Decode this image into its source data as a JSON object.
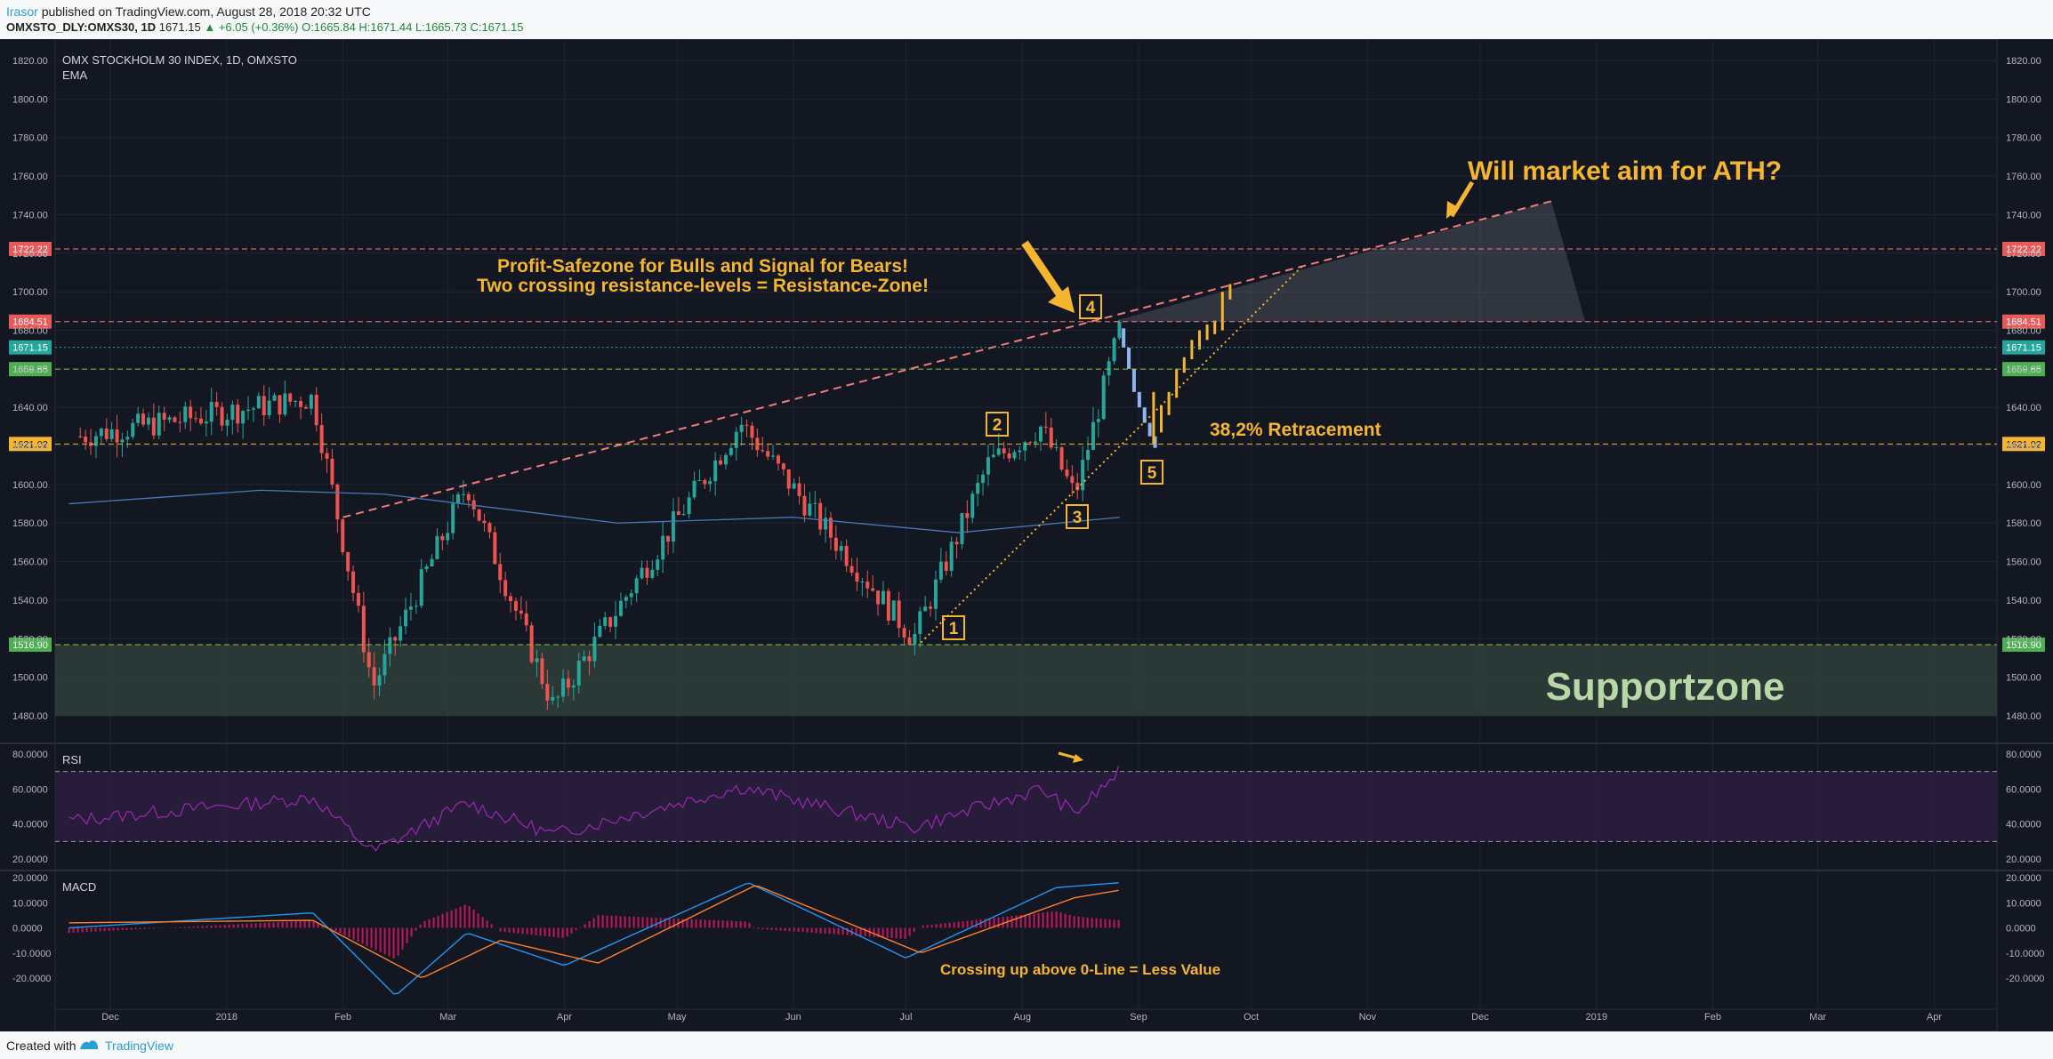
{
  "header": {
    "author": "Irasor",
    "published": "published on TradingView.com, August 28, 2018 20:32 UTC",
    "symbol": "OMXSTO_DLY:OMXS30, 1D",
    "last": "1671.15",
    "change": "▲ +6.05 (+0.36%)",
    "ohlc": "O:1665.84 H:1671.44 L:1665.73 C:1671.15"
  },
  "footer": {
    "created": "Created with",
    "brand": "TradingView"
  },
  "colors": {
    "background": "#131722",
    "up": "#26a69a",
    "down": "#ef5350",
    "annotation": "#f5b52e",
    "resistance": "#f07b7b",
    "support_zone": "#2e3d38",
    "rsi_line": "#9c27b0",
    "macd_line": "#2196f3",
    "signal_line": "#ff7f2a"
  },
  "chart_data": [
    {
      "type": "candlestick",
      "title": "OMX STOCKHOLM 30 INDEX, 1D, OMXSTO",
      "indicator_label": "EMA",
      "x_labels": [
        "Dec",
        "2018",
        "Feb",
        "Mar",
        "Apr",
        "May",
        "Jun",
        "Jul",
        "Aug",
        "Sep",
        "Oct",
        "Nov",
        "Dec",
        "2019",
        "Feb",
        "Mar",
        "Apr"
      ],
      "y_ticks": [
        "1820.00",
        "1800.00",
        "1780.00",
        "1760.00",
        "1740.00",
        "1720.00",
        "1700.00",
        "1680.00",
        "1660.00",
        "1640.00",
        "1620.00",
        "1600.00",
        "1580.00",
        "1560.00",
        "1540.00",
        "1520.00",
        "1500.00",
        "1480.00"
      ],
      "ylim": [
        1474,
        1830
      ],
      "price_levels": [
        {
          "label": "1722.22",
          "value": 1722.22,
          "style": "resistance"
        },
        {
          "label": "1684.51",
          "value": 1684.51,
          "style": "resistance"
        },
        {
          "label": "1671.15",
          "value": 1671.15,
          "style": "last"
        },
        {
          "label": "1659.85",
          "value": 1659.85,
          "style": "level"
        },
        {
          "label": "1621.02",
          "value": 1621.02,
          "style": "fib"
        },
        {
          "label": "1516.90",
          "value": 1516.9,
          "style": "level"
        }
      ],
      "support_zone": {
        "label": "Supportzone",
        "from": 1480,
        "to": 1517
      },
      "key_points": [
        {
          "date": "2017-11-23",
          "price": 1625
        },
        {
          "date": "2018-01-24",
          "price": 1645
        },
        {
          "date": "2018-02-09",
          "price": 1495
        },
        {
          "date": "2018-03-06",
          "price": 1600
        },
        {
          "date": "2018-03-29",
          "price": 1485
        },
        {
          "date": "2018-05-18",
          "price": 1632
        },
        {
          "date": "2018-07-03",
          "price": 1520
        },
        {
          "date": "2018-07-23",
          "price": 1611
        },
        {
          "date": "2018-08-06",
          "price": 1630
        },
        {
          "date": "2018-08-15",
          "price": 1594
        },
        {
          "date": "2018-08-27",
          "price": 1681
        }
      ],
      "ema": [
        {
          "date": "2017-11-20",
          "value": 1590
        },
        {
          "date": "2018-01-10",
          "value": 1597
        },
        {
          "date": "2018-02-12",
          "value": 1595
        },
        {
          "date": "2018-04-15",
          "value": 1580
        },
        {
          "date": "2018-06-01",
          "value": 1583
        },
        {
          "date": "2018-07-15",
          "value": 1575
        },
        {
          "date": "2018-08-27",
          "value": 1583
        }
      ],
      "annotations": [
        {
          "text": "Will market aim for ATH?"
        },
        {
          "text": "Profit-Safezone for Bulls and Signal for Bears!"
        },
        {
          "text": "Two crossing resistance-levels = Resistance-Zone!"
        },
        {
          "text": "38,2% Retracement"
        },
        {
          "text": "1"
        },
        {
          "text": "2"
        },
        {
          "text": "3"
        },
        {
          "text": "4"
        },
        {
          "text": "5"
        }
      ]
    },
    {
      "type": "line",
      "title": "RSI",
      "y_ticks": [
        "80.0000",
        "60.0000",
        "40.0000",
        "20.0000"
      ],
      "ylim": [
        15,
        81
      ],
      "bands": [
        30,
        70
      ],
      "points": [
        {
          "date": "2017-11-20",
          "value": 42
        },
        {
          "date": "2018-01-24",
          "value": 55
        },
        {
          "date": "2018-02-09",
          "value": 24
        },
        {
          "date": "2018-03-06",
          "value": 52
        },
        {
          "date": "2018-03-29",
          "value": 34
        },
        {
          "date": "2018-05-18",
          "value": 61
        },
        {
          "date": "2018-07-03",
          "value": 38
        },
        {
          "date": "2018-08-06",
          "value": 60
        },
        {
          "date": "2018-08-15",
          "value": 46
        },
        {
          "date": "2018-08-27",
          "value": 70
        }
      ]
    },
    {
      "type": "line",
      "title": "MACD",
      "y_ticks": [
        "20.0000",
        "10.0000",
        "0.0000",
        "-10.0000",
        "-20.0000"
      ],
      "ylim": [
        -30,
        22
      ],
      "annotation": "Crossing up above 0-Line = Less Value",
      "macd": [
        {
          "date": "2017-11-20",
          "value": 0
        },
        {
          "date": "2018-01-24",
          "value": 6
        },
        {
          "date": "2018-02-15",
          "value": -27
        },
        {
          "date": "2018-03-06",
          "value": -2
        },
        {
          "date": "2018-04-01",
          "value": -15
        },
        {
          "date": "2018-05-20",
          "value": 18
        },
        {
          "date": "2018-07-01",
          "value": -12
        },
        {
          "date": "2018-08-10",
          "value": 16
        },
        {
          "date": "2018-08-27",
          "value": 18
        }
      ],
      "signal": [
        {
          "date": "2017-11-20",
          "value": 2
        },
        {
          "date": "2018-01-24",
          "value": 3
        },
        {
          "date": "2018-02-22",
          "value": -20
        },
        {
          "date": "2018-03-15",
          "value": -5
        },
        {
          "date": "2018-04-10",
          "value": -14
        },
        {
          "date": "2018-05-22",
          "value": 17
        },
        {
          "date": "2018-07-05",
          "value": -10
        },
        {
          "date": "2018-08-15",
          "value": 12
        },
        {
          "date": "2018-08-27",
          "value": 15
        }
      ]
    }
  ]
}
